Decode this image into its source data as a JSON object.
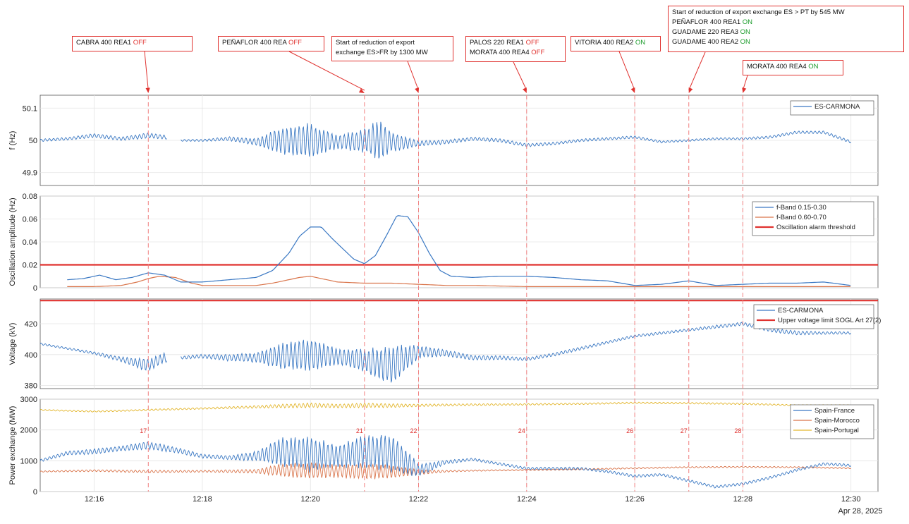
{
  "date_label": "Apr 28, 2025",
  "x_ticks": [
    "12:16",
    "12:18",
    "12:20",
    "12:22",
    "12:24",
    "12:26",
    "12:28",
    "12:30"
  ],
  "events": [
    {
      "time_label": "17",
      "time": 17.0
    },
    {
      "time_label": "21",
      "time": 21.0
    },
    {
      "time_label": "22",
      "time": 22.0
    },
    {
      "time_label": "24",
      "time": 24.0
    },
    {
      "time_label": "26",
      "time": 26.0
    },
    {
      "time_label": "27",
      "time": 27.0
    },
    {
      "time_label": "28",
      "time": 28.0
    }
  ],
  "annotations": [
    {
      "lines": [
        {
          "text": "CABRA  400  REA1  ",
          "state": "OFF"
        }
      ]
    },
    {
      "lines": [
        {
          "text": "PEÑAFLOR  400  REA  ",
          "state": "OFF"
        }
      ]
    },
    {
      "lines": [
        {
          "text": "Start  of  reduction  of  export",
          "state": ""
        },
        {
          "text": "exchange  ES>FR  by  1300  MW",
          "state": ""
        }
      ]
    },
    {
      "lines": [
        {
          "text": "PALOS  220  REA1  ",
          "state": "OFF"
        },
        {
          "text": "MORATA  400  REA4  ",
          "state": "OFF"
        }
      ]
    },
    {
      "lines": [
        {
          "text": "VITORIA  400  REA2  ",
          "state": "ON"
        }
      ]
    },
    {
      "lines": [
        {
          "text": "Start  of  reduction  of  export  exchange  ES  >  PT  by  545  MW",
          "state": ""
        },
        {
          "text": "PEÑAFLOR  400  REA1  ",
          "state": "ON"
        },
        {
          "text": "GUADAME  220  REA3  ",
          "state": "ON"
        },
        {
          "text": "GUADAME  400  REA2  ",
          "state": "ON"
        }
      ]
    },
    {
      "lines": [
        {
          "text": "MORATA  400  REA4  ",
          "state": "ON"
        }
      ]
    }
  ],
  "colors": {
    "blue": "#3a78c3",
    "orange": "#d9744a",
    "yellow": "#e3b62e",
    "threshold_red": "#e0322f",
    "event_line": "#f08080"
  },
  "chart_data": [
    {
      "type": "line",
      "ylabel": "f (Hz)",
      "ylim": [
        49.86,
        50.14
      ],
      "yticks": [
        "49.9",
        "50",
        "50.1"
      ],
      "legend": [
        "ES-CARMONA"
      ],
      "series": [
        {
          "name": "ES-CARMONA",
          "x": [
            15.0,
            15.5,
            16.0,
            16.5,
            17.0,
            17.3,
            17.6,
            18.0,
            18.5,
            19.0,
            19.5,
            20.0,
            20.5,
            21.0,
            21.3,
            21.5,
            22.0,
            22.5,
            23.0,
            23.5,
            24.0,
            24.5,
            25.0,
            25.5,
            26.0,
            26.5,
            27.0,
            27.5,
            28.0,
            28.5,
            29.0,
            29.5,
            30.0
          ],
          "y": [
            50.0,
            50.005,
            50.015,
            50.005,
            50.015,
            50.01,
            50.0,
            50.0,
            50.005,
            49.995,
            50.0,
            50.0,
            49.995,
            50.0,
            50.0,
            49.995,
            49.99,
            49.995,
            50.005,
            50.0,
            49.985,
            49.99,
            50.0,
            50.005,
            50.01,
            49.995,
            50.0,
            50.005,
            50.005,
            50.01,
            50.025,
            50.025,
            49.995
          ],
          "osc_amplitude": [
            0.004,
            0.004,
            0.006,
            0.005,
            0.008,
            0.006,
            0.003,
            0.003,
            0.006,
            0.01,
            0.04,
            0.05,
            0.02,
            0.035,
            0.06,
            0.03,
            0.008,
            0.006,
            0.005,
            0.005,
            0.005,
            0.004,
            0.004,
            0.004,
            0.004,
            0.003,
            0.003,
            0.003,
            0.003,
            0.004,
            0.004,
            0.004,
            0.004
          ]
        }
      ]
    },
    {
      "type": "line",
      "ylabel": "Oscillation amplitude (Hz)",
      "ylim": [
        0,
        0.08
      ],
      "yticks": [
        "0",
        "0.02",
        "0.04",
        "0.06",
        "0.08"
      ],
      "legend": [
        "f-Band 0.15-0.30",
        "f-Band 0.60-0.70",
        "Oscillation alarm threshold"
      ],
      "threshold": 0.02,
      "series": [
        {
          "name": "f-Band 0.15-0.30",
          "x": [
            15.5,
            15.8,
            16.1,
            16.4,
            16.7,
            17.0,
            17.3,
            17.6,
            18.0,
            18.5,
            19.0,
            19.3,
            19.6,
            19.8,
            20.0,
            20.2,
            20.4,
            20.6,
            20.8,
            21.0,
            21.2,
            21.4,
            21.6,
            21.8,
            22.0,
            22.2,
            22.4,
            22.6,
            23.0,
            23.5,
            24.0,
            24.5,
            25.0,
            25.5,
            26.0,
            26.5,
            27.0,
            27.5,
            28.0,
            28.5,
            29.0,
            29.5,
            30.0
          ],
          "y": [
            0.007,
            0.008,
            0.011,
            0.007,
            0.009,
            0.013,
            0.011,
            0.005,
            0.005,
            0.007,
            0.009,
            0.015,
            0.03,
            0.045,
            0.053,
            0.053,
            0.043,
            0.034,
            0.025,
            0.021,
            0.028,
            0.045,
            0.063,
            0.062,
            0.048,
            0.03,
            0.015,
            0.01,
            0.009,
            0.01,
            0.01,
            0.009,
            0.007,
            0.006,
            0.002,
            0.003,
            0.006,
            0.002,
            0.003,
            0.004,
            0.004,
            0.005,
            0.002
          ]
        },
        {
          "name": "f-Band 0.60-0.70",
          "x": [
            15.5,
            16.0,
            16.5,
            16.8,
            17.0,
            17.2,
            17.5,
            17.8,
            18.0,
            18.5,
            19.0,
            19.3,
            19.6,
            19.8,
            20.0,
            20.2,
            20.5,
            21.0,
            21.5,
            22.0,
            22.5,
            23.0,
            24.0,
            25.0,
            26.0,
            27.0,
            28.0,
            29.0,
            30.0
          ],
          "y": [
            0.001,
            0.001,
            0.002,
            0.005,
            0.008,
            0.01,
            0.009,
            0.004,
            0.002,
            0.002,
            0.002,
            0.004,
            0.007,
            0.009,
            0.01,
            0.008,
            0.005,
            0.004,
            0.004,
            0.003,
            0.002,
            0.002,
            0.001,
            0.001,
            0.001,
            0.001,
            0.001,
            0.001,
            0.001
          ]
        }
      ]
    },
    {
      "type": "line",
      "ylabel": "Voltage (kV)",
      "ylim": [
        378,
        436
      ],
      "yticks": [
        "380",
        "400",
        "420"
      ],
      "legend": [
        "ES-CARMONA",
        "Upper voltage limit SOGL Art 27(2)"
      ],
      "threshold": 435,
      "series": [
        {
          "name": "ES-CARMONA",
          "x": [
            15.0,
            15.5,
            16.0,
            16.5,
            17.0,
            17.3,
            17.6,
            18.0,
            18.5,
            19.0,
            19.5,
            20.0,
            20.5,
            21.0,
            21.5,
            22.0,
            22.5,
            23.0,
            23.5,
            24.0,
            24.5,
            25.0,
            25.5,
            26.0,
            26.5,
            27.0,
            27.5,
            28.0,
            28.5,
            29.0,
            29.5,
            30.0
          ],
          "y": [
            407,
            404,
            401,
            397,
            393,
            398,
            398,
            399,
            398,
            398,
            399,
            400,
            399,
            396,
            393,
            402,
            401,
            398,
            398,
            397,
            400,
            404,
            408,
            412,
            414,
            416,
            418,
            420,
            416,
            414,
            414,
            414
          ],
          "osc_amplitude": [
            0.6,
            0.6,
            0.8,
            1.5,
            4,
            3,
            1,
            1.2,
            2,
            3,
            8,
            10,
            5,
            7,
            12,
            4,
            2,
            1.5,
            1.2,
            1,
            1,
            1,
            0.8,
            0.8,
            0.8,
            0.8,
            1,
            1,
            1.2,
            1.2,
            0.8,
            0.8
          ]
        }
      ]
    },
    {
      "type": "line",
      "ylabel": "Power exchange (MW)",
      "ylim": [
        0,
        3000
      ],
      "yticks": [
        "0",
        "1000",
        "2000",
        "3000"
      ],
      "legend": [
        "Spain-France",
        "Spain-Morocco",
        "Spain-Portugal"
      ],
      "series": [
        {
          "name": "Spain-France",
          "x": [
            15.0,
            15.5,
            16.0,
            16.5,
            17.0,
            17.5,
            18.0,
            18.5,
            19.0,
            19.5,
            20.0,
            20.5,
            21.0,
            21.5,
            22.0,
            22.5,
            23.0,
            23.5,
            24.0,
            24.5,
            25.0,
            25.5,
            26.0,
            26.5,
            27.0,
            27.5,
            28.0,
            28.5,
            29.0,
            29.5,
            30.0
          ],
          "y": [
            1000,
            1250,
            1300,
            1400,
            1500,
            1350,
            1150,
            1100,
            1150,
            1300,
            1200,
            1150,
            1300,
            1250,
            700,
            950,
            1050,
            900,
            750,
            750,
            750,
            650,
            500,
            550,
            350,
            150,
            250,
            450,
            700,
            900,
            850
          ],
          "osc_amplitude": [
            40,
            60,
            80,
            80,
            120,
            90,
            60,
            60,
            150,
            450,
            550,
            350,
            500,
            600,
            200,
            60,
            40,
            40,
            40,
            40,
            40,
            40,
            40,
            40,
            40,
            40,
            40,
            40,
            40,
            40,
            40
          ]
        },
        {
          "name": "Spain-Morocco",
          "x": [
            15.0,
            16.0,
            17.0,
            18.0,
            19.0,
            19.5,
            20.0,
            20.5,
            21.0,
            21.5,
            22.0,
            22.5,
            23.0,
            24.0,
            25.0,
            26.0,
            27.0,
            28.0,
            29.0,
            30.0
          ],
          "y": [
            650,
            680,
            650,
            660,
            660,
            700,
            680,
            670,
            660,
            650,
            620,
            660,
            680,
            700,
            720,
            760,
            790,
            800,
            790,
            760
          ],
          "osc_amplitude": [
            20,
            30,
            40,
            30,
            60,
            200,
            250,
            200,
            250,
            200,
            80,
            30,
            20,
            20,
            20,
            20,
            20,
            20,
            20,
            20
          ]
        },
        {
          "name": "Spain-Portugal",
          "x": [
            15.0,
            16.0,
            17.0,
            18.0,
            19.0,
            19.5,
            20.0,
            20.5,
            21.0,
            21.5,
            22.0,
            23.0,
            24.0,
            25.0,
            26.0,
            27.0,
            28.0,
            29.0,
            30.0
          ],
          "y": [
            2650,
            2600,
            2650,
            2700,
            2750,
            2780,
            2800,
            2780,
            2800,
            2790,
            2800,
            2820,
            2830,
            2850,
            2880,
            2870,
            2850,
            2800,
            2800
          ],
          "osc_amplitude": [
            20,
            20,
            25,
            25,
            40,
            60,
            70,
            60,
            70,
            60,
            40,
            30,
            25,
            25,
            25,
            25,
            25,
            20,
            20
          ]
        }
      ]
    }
  ]
}
